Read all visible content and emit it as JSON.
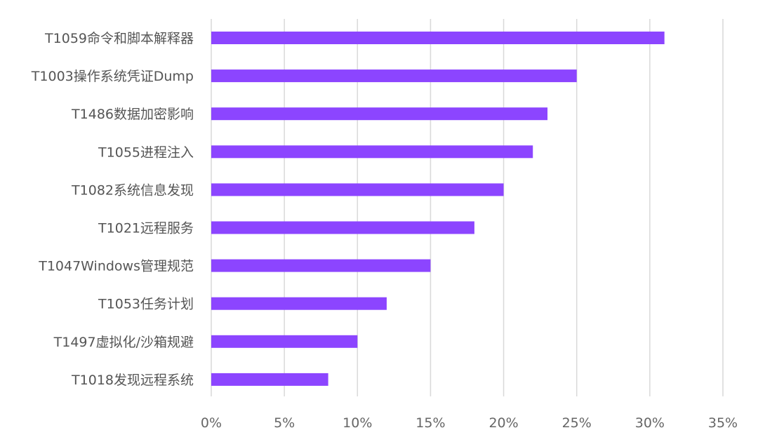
{
  "chart_data": {
    "type": "bar",
    "orientation": "horizontal",
    "categories": [
      "T1059命令和脚本解释器",
      "T1003操作系统凭证Dump",
      "T1486数据加密影响",
      "T1055进程注入",
      "T1082系统信息发现",
      "T1021远程服务",
      "T1047Windows管理规范",
      "T1053任务计划",
      "T1497虚拟化/沙箱规避",
      "T1018发现远程系统"
    ],
    "values": [
      31,
      25,
      23,
      22,
      20,
      18,
      15,
      12,
      10,
      8
    ],
    "unit": "%",
    "xlim": [
      0,
      35
    ],
    "xticks": [
      0,
      5,
      10,
      15,
      20,
      25,
      30,
      35
    ],
    "xtick_labels": [
      "0%",
      "5%",
      "10%",
      "15%",
      "20%",
      "25%",
      "30%",
      "35%"
    ],
    "bar_color": "#8c45ff",
    "grid": true,
    "legend": false
  }
}
